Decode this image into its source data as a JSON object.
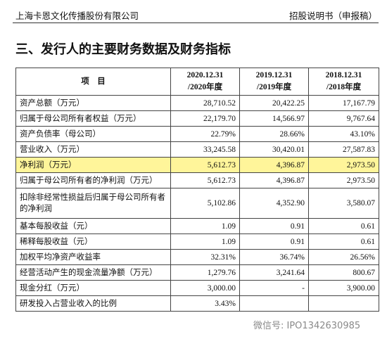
{
  "header": {
    "company": "上海卡恩文化传播股份有限公司",
    "doc": "招股说明书（申报稿）"
  },
  "section_title": "三、发行人的主要财务数据及财务指标",
  "table": {
    "item_header": "项　目",
    "columns": [
      {
        "date": "2020.12.31",
        "period": "/2020年度"
      },
      {
        "date": "2019.12.31",
        "period": "/2019年度"
      },
      {
        "date": "2018.12.31",
        "period": "/2018年度"
      }
    ],
    "rows": [
      [
        "资产总额（万元）",
        "28,710.52",
        "20,422.25",
        "17,167.79"
      ],
      [
        "归属于母公司所有者权益（万元）",
        "22,179.70",
        "14,566.97",
        "9,767.64"
      ],
      [
        "资产负债率（母公司）",
        "22.79%",
        "28.66%",
        "43.10%"
      ],
      [
        "营业收入（万元）",
        "33,245.58",
        "30,420.01",
        "27,587.83"
      ],
      [
        "净利润（万元）",
        "5,612.73",
        "4,396.87",
        "2,973.50"
      ],
      [
        "归属于母公司所有者的净利润（万元）",
        "5,612.73",
        "4,396.87",
        "2,973.50"
      ],
      [
        "扣除非经常性损益后归属于母公司所有者的净利润",
        "5,102.86",
        "4,352.90",
        "3,580.07"
      ],
      [
        "基本每股收益（元）",
        "1.09",
        "0.91",
        "0.61"
      ],
      [
        "稀释每股收益（元）",
        "1.09",
        "0.91",
        "0.61"
      ],
      [
        "加权平均净资产收益率",
        "32.31%",
        "36.74%",
        "26.56%"
      ],
      [
        "经营活动产生的现金流量净额（万元）",
        "1,279.76",
        "3,241.64",
        "800.67"
      ],
      [
        "现金分红（万元）",
        "3,000.00",
        "-",
        "3,900.00"
      ],
      [
        "研发投入占营业收入的比例",
        "3.43%",
        "",
        ""
      ]
    ]
  },
  "watermark": "微信号: IPO1342630985"
}
